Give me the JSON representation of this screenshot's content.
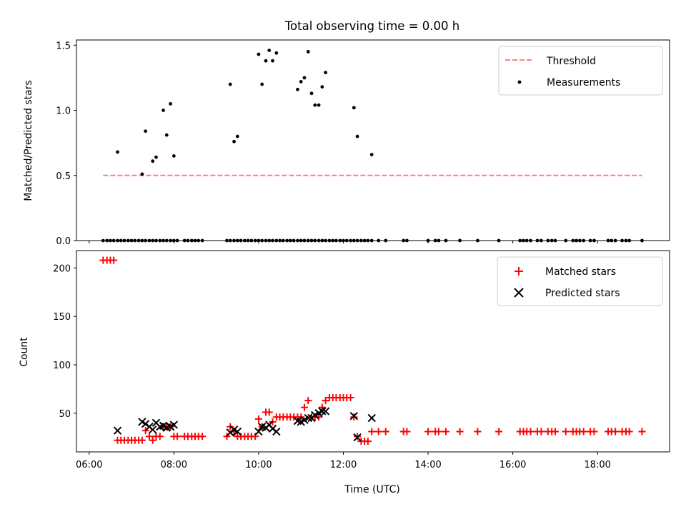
{
  "chart_data": [
    {
      "type": "scatter",
      "title": "Total observing time = 0.00 h",
      "xlabel": "",
      "ylabel": "Matched/Predicted stars",
      "xlim": [
        5.7,
        19.7
      ],
      "ylim": [
        0,
        1.54
      ],
      "yticks": [
        0.0,
        0.5,
        1.0,
        1.5
      ],
      "ytick_labels": [
        "0.0",
        "0.5",
        "1.0",
        "1.5"
      ],
      "legend_position": "upper right",
      "legend": [
        "Threshold",
        "Measurements"
      ],
      "colors": {
        "threshold": "#ff7f7f",
        "measurements": "#000000"
      },
      "threshold": {
        "name": "Threshold",
        "x": [
          6.33,
          19.05
        ],
        "y": 0.5
      },
      "series": [
        {
          "name": "Measurements",
          "x": [
            6.33,
            6.42,
            6.5,
            6.58,
            6.67,
            6.75,
            6.83,
            6.92,
            7.0,
            7.08,
            7.17,
            7.25,
            7.33,
            7.42,
            7.5,
            7.58,
            7.67,
            7.75,
            7.83,
            7.92,
            8.0,
            8.08,
            8.25,
            8.33,
            8.42,
            8.5,
            8.58,
            8.67,
            9.25,
            9.33,
            9.42,
            9.5,
            9.58,
            9.67,
            9.75,
            9.83,
            9.92,
            10.0,
            10.08,
            10.17,
            10.25,
            10.33,
            10.42,
            10.5,
            10.58,
            10.67,
            10.75,
            10.83,
            10.92,
            11.0,
            11.08,
            11.17,
            11.25,
            11.33,
            11.42,
            11.5,
            11.58,
            11.67,
            11.75,
            11.83,
            11.92,
            12.0,
            12.08,
            12.17,
            12.25,
            12.33,
            12.42,
            12.5,
            12.58,
            12.67,
            12.83,
            13.0,
            13.42,
            13.5,
            14.0,
            14.17,
            14.25,
            14.42,
            14.75,
            15.17,
            15.67,
            16.17,
            16.25,
            16.33,
            16.42,
            16.58,
            16.67,
            16.83,
            16.92,
            17.0,
            17.25,
            17.42,
            17.5,
            17.58,
            17.67,
            17.83,
            17.92,
            18.25,
            18.33,
            18.42,
            18.58,
            18.67,
            18.75,
            19.05,
            6.67,
            7.25,
            7.33,
            7.5,
            7.58,
            7.75,
            7.83,
            7.92,
            8.0,
            9.33,
            9.42,
            9.5,
            10.0,
            10.08,
            10.17,
            10.25,
            10.33,
            10.42,
            10.92,
            11.0,
            11.08,
            11.17,
            11.25,
            11.33,
            11.42,
            11.5,
            11.58,
            12.25,
            12.33,
            12.67
          ],
          "y": [
            0,
            0,
            0,
            0,
            0,
            0,
            0,
            0,
            0,
            0,
            0,
            0,
            0,
            0,
            0,
            0,
            0,
            0,
            0,
            0,
            0,
            0,
            0,
            0,
            0,
            0,
            0,
            0,
            0,
            0,
            0,
            0,
            0,
            0,
            0,
            0,
            0,
            0,
            0,
            0,
            0,
            0,
            0,
            0,
            0,
            0,
            0,
            0,
            0,
            0,
            0,
            0,
            0,
            0,
            0,
            0,
            0,
            0,
            0,
            0,
            0,
            0,
            0,
            0,
            0,
            0,
            0,
            0,
            0,
            0,
            0,
            0,
            0,
            0,
            0,
            0,
            0,
            0,
            0,
            0,
            0,
            0,
            0,
            0,
            0,
            0,
            0,
            0,
            0,
            0,
            0,
            0,
            0,
            0,
            0,
            0,
            0,
            0,
            0,
            0,
            0,
            0,
            0,
            0,
            0.68,
            0.51,
            0.84,
            0.61,
            0.64,
            1.0,
            0.81,
            1.05,
            0.65,
            1.2,
            0.76,
            0.8,
            1.43,
            1.2,
            1.38,
            1.46,
            1.38,
            1.44,
            1.16,
            1.22,
            1.25,
            1.45,
            1.13,
            1.04,
            1.04,
            1.18,
            1.29,
            1.02,
            0.8,
            0.66
          ]
        }
      ]
    },
    {
      "type": "scatter",
      "title": "",
      "xlabel": "Time (UTC)",
      "ylabel": "Count",
      "xlim": [
        5.7,
        19.7
      ],
      "ylim": [
        10,
        218
      ],
      "yticks": [
        50,
        100,
        150,
        200
      ],
      "ytick_labels": [
        "50",
        "100",
        "150",
        "200"
      ],
      "xticks": [
        6,
        8,
        10,
        12,
        14,
        16,
        18
      ],
      "xtick_labels": [
        "06:00",
        "08:00",
        "10:00",
        "12:00",
        "14:00",
        "16:00",
        "18:00"
      ],
      "legend_position": "upper right",
      "legend": [
        "Matched stars",
        "Predicted stars"
      ],
      "colors": {
        "matched": "#ff0000",
        "predicted": "#000000"
      },
      "series": [
        {
          "name": "Matched stars",
          "x": [
            6.33,
            6.42,
            6.5,
            6.58,
            6.67,
            6.75,
            6.83,
            6.92,
            7.0,
            7.08,
            7.17,
            7.25,
            7.33,
            7.42,
            7.5,
            7.58,
            7.67,
            7.75,
            7.83,
            7.92,
            8.0,
            8.08,
            8.25,
            8.33,
            8.42,
            8.5,
            8.58,
            8.67,
            9.25,
            9.33,
            9.42,
            9.5,
            9.58,
            9.67,
            9.75,
            9.83,
            9.92,
            10.0,
            10.08,
            10.17,
            10.25,
            10.33,
            10.42,
            10.5,
            10.58,
            10.67,
            10.75,
            10.83,
            10.92,
            11.0,
            11.08,
            11.17,
            11.25,
            11.33,
            11.42,
            11.5,
            11.58,
            11.67,
            11.75,
            11.83,
            11.92,
            12.0,
            12.08,
            12.17,
            12.25,
            12.33,
            12.42,
            12.5,
            12.58,
            12.67,
            12.83,
            13.0,
            13.42,
            13.5,
            14.0,
            14.17,
            14.25,
            14.42,
            14.75,
            15.17,
            15.67,
            16.17,
            16.25,
            16.33,
            16.42,
            16.58,
            16.67,
            16.83,
            16.92,
            17.0,
            17.25,
            17.42,
            17.5,
            17.58,
            17.67,
            17.83,
            17.92,
            18.25,
            18.33,
            18.42,
            18.58,
            18.67,
            18.75,
            19.05
          ],
          "y": [
            208,
            208,
            208,
            208,
            22,
            22,
            22,
            22,
            22,
            22,
            22,
            22,
            32,
            26,
            22,
            26,
            26,
            36,
            36,
            36,
            26,
            26,
            26,
            26,
            26,
            26,
            26,
            26,
            26,
            36,
            31,
            26,
            26,
            26,
            26,
            26,
            26,
            44,
            36,
            51,
            51,
            41,
            46,
            46,
            46,
            46,
            46,
            46,
            46,
            46,
            56,
            63,
            46,
            46,
            46,
            56,
            63,
            66,
            66,
            66,
            66,
            66,
            66,
            66,
            46,
            26,
            21,
            21,
            21,
            31,
            31,
            31,
            31,
            31,
            31,
            31,
            31,
            31,
            31,
            31,
            31,
            31,
            31,
            31,
            31,
            31,
            31,
            31,
            31,
            31,
            31,
            31,
            31,
            31,
            31,
            31,
            31,
            31,
            31,
            31,
            31,
            31,
            31,
            31
          ]
        },
        {
          "name": "Predicted stars",
          "x": [
            6.67,
            7.25,
            7.33,
            7.42,
            7.5,
            7.58,
            7.67,
            7.75,
            7.83,
            7.92,
            8.0,
            9.33,
            9.42,
            9.5,
            10.0,
            10.08,
            10.17,
            10.25,
            10.33,
            10.42,
            10.92,
            11.0,
            11.08,
            11.17,
            11.25,
            11.33,
            11.42,
            11.5,
            11.58,
            12.25,
            12.33,
            12.67
          ],
          "y": [
            32,
            41,
            39,
            36,
            33,
            40,
            36,
            37,
            35,
            36,
            38,
            30,
            33,
            31,
            31,
            36,
            35,
            38,
            34,
            31,
            42,
            41,
            43,
            45,
            45,
            48,
            50,
            52,
            52,
            47,
            25,
            45
          ]
        }
      ]
    }
  ]
}
